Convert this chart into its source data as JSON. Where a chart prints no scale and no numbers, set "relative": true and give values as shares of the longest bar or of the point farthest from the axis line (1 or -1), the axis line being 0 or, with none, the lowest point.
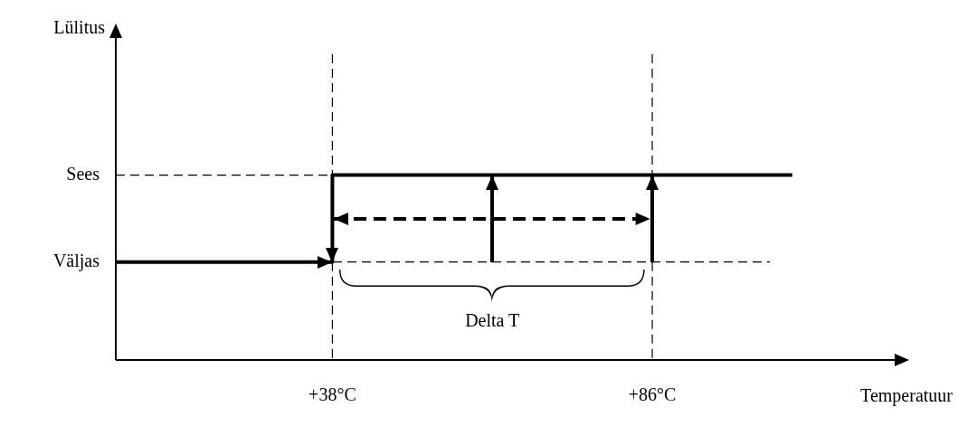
{
  "chart_data": {
    "type": "line",
    "xlabel": "Temperatuur",
    "relative": true,
    "xlim": [
      5.5,
      124
    ],
    "xticks": [
      {
        "value": 38,
        "label": "+38°C"
      },
      {
        "value": 86,
        "label": "+86°C"
      }
    ],
    "grid": false,
    "legend": false,
    "series": [
      {
        "color": "#000000",
        "line_style": "solid",
        "x": [
          5.5,
          38,
          38,
          107
        ],
        "values": [
          0.53,
          0.53,
          1,
          1
        ]
      }
    ],
    "ref_lines": [
      {
        "axis": "x",
        "value": 38,
        "color": "#000000",
        "line_style": "dashed"
      },
      {
        "axis": "x",
        "value": 86,
        "color": "#000000",
        "line_style": "dashed"
      },
      {
        "axis": "y",
        "value": 0.53,
        "label": "Väljas",
        "color": "#000000",
        "line_style": "dashed"
      },
      {
        "axis": "y",
        "value": 1,
        "label": "Sees",
        "color": "#000000",
        "line_style": "dashed"
      }
    ],
    "annotations": [
      "Lülitus",
      "Delta T"
    ]
  }
}
